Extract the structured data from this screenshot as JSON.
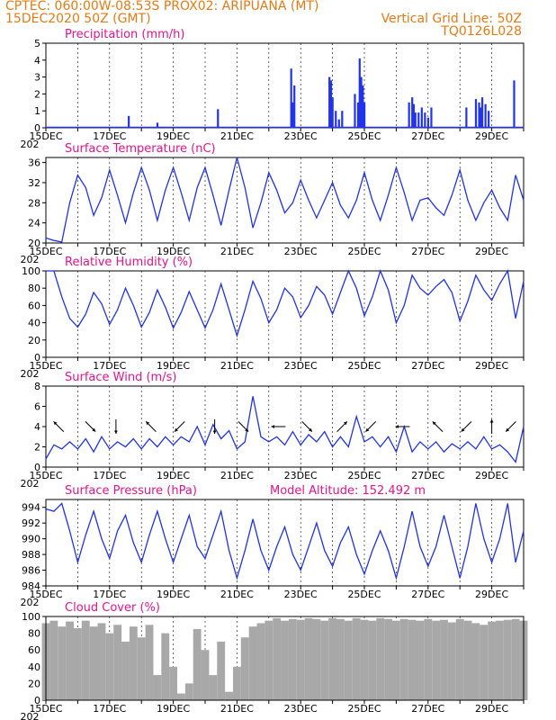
{
  "header": {
    "line1_left": "CPTEC:   060:00W-08:53S   PROX02: ARIPUANA (MT)",
    "line2_left": "15DEC2020 50Z (GMT)",
    "line2_right": "Vertical Grid Line: 50Z",
    "line3_right": "TQ0126L028"
  },
  "colors": {
    "line": "#2233dd",
    "bar": "#2233ee",
    "cloud": "#a8a8a8",
    "title": "#e0148c",
    "header": "#e07b17"
  },
  "x_axis": {
    "day_min": 15,
    "day_max": 30,
    "labels": [
      "15DEC",
      "17DEC",
      "19DEC",
      "21DEC",
      "23DEC",
      "25DEC",
      "27DEC",
      "29DEC"
    ],
    "label_days": [
      15,
      17,
      19,
      21,
      23,
      25,
      27,
      29
    ],
    "year_label": "202"
  },
  "chart_data": [
    {
      "id": "precip",
      "type": "bar",
      "title": "Precipitation (mm/h)",
      "ylim": [
        0,
        5
      ],
      "yticks": [
        0,
        1,
        2,
        3,
        4,
        5
      ],
      "x": [
        17.6,
        18.5,
        20.4,
        22.7,
        22.75,
        22.8,
        23.9,
        23.95,
        24.0,
        24.1,
        24.2,
        24.3,
        24.7,
        24.8,
        24.85,
        24.9,
        24.95,
        25.0,
        26.4,
        26.5,
        26.55,
        26.6,
        26.7,
        26.8,
        26.9,
        27.0,
        27.1,
        28.2,
        28.5,
        28.6,
        28.65,
        28.7,
        28.8,
        28.9,
        29.7
      ],
      "values": [
        0.7,
        0.3,
        1.1,
        3.5,
        1.5,
        2.5,
        3.0,
        2.8,
        1.8,
        1.0,
        0.5,
        1.0,
        2.0,
        1.5,
        4.1,
        3.0,
        2.5,
        1.5,
        1.5,
        1.8,
        1.4,
        0.9,
        0.9,
        1.2,
        0.9,
        0.6,
        1.2,
        1.2,
        1.7,
        1.5,
        1.2,
        1.8,
        1.4,
        1.0,
        2.8
      ]
    },
    {
      "id": "temp",
      "type": "line",
      "title": "Surface Temperature (nC)",
      "ylim": [
        20,
        37
      ],
      "yticks": [
        20,
        24,
        28,
        32,
        36
      ],
      "x": [
        15.0,
        15.25,
        15.5,
        15.75,
        16.0,
        16.25,
        16.5,
        16.75,
        17.0,
        17.25,
        17.5,
        17.75,
        18.0,
        18.25,
        18.5,
        18.75,
        19.0,
        19.25,
        19.5,
        19.75,
        20.0,
        20.25,
        20.5,
        20.75,
        21.0,
        21.25,
        21.5,
        21.75,
        22.0,
        22.25,
        22.5,
        22.75,
        23.0,
        23.25,
        23.5,
        23.75,
        24.0,
        24.25,
        24.5,
        24.75,
        25.0,
        25.25,
        25.5,
        25.75,
        26.0,
        26.25,
        26.5,
        26.75,
        27.0,
        27.25,
        27.5,
        27.75,
        28.0,
        28.25,
        28.5,
        28.75,
        29.0,
        29.25,
        29.5,
        29.75,
        30.0
      ],
      "values": [
        21.0,
        20.5,
        20.2,
        28.0,
        33.5,
        31.0,
        25.5,
        29.0,
        34.5,
        29.5,
        24.0,
        30.0,
        35.0,
        30.5,
        24.5,
        30.5,
        35.0,
        30.0,
        24.5,
        31.0,
        35.0,
        29.5,
        23.5,
        30.5,
        37.0,
        31.0,
        23.0,
        28.0,
        34.0,
        30.5,
        26.0,
        28.0,
        32.5,
        28.5,
        25.0,
        28.5,
        32.0,
        27.5,
        25.0,
        28.5,
        34.0,
        28.5,
        24.5,
        29.5,
        35.0,
        30.0,
        24.5,
        28.5,
        29.0,
        27.0,
        25.5,
        29.5,
        34.5,
        28.5,
        24.5,
        28.0,
        30.5,
        27.0,
        24.5,
        33.5,
        28.5
      ]
    },
    {
      "id": "rh",
      "type": "line",
      "title": "Relative Humidity (%)",
      "ylim": [
        0,
        100
      ],
      "yticks": [
        0,
        20,
        40,
        60,
        80,
        100
      ],
      "x": [
        15.0,
        15.25,
        15.5,
        15.75,
        16.0,
        16.25,
        16.5,
        16.75,
        17.0,
        17.25,
        17.5,
        17.75,
        18.0,
        18.25,
        18.5,
        18.75,
        19.0,
        19.25,
        19.5,
        19.75,
        20.0,
        20.25,
        20.5,
        20.75,
        21.0,
        21.25,
        21.5,
        21.75,
        22.0,
        22.25,
        22.5,
        22.75,
        23.0,
        23.25,
        23.5,
        23.75,
        24.0,
        24.25,
        24.5,
        24.75,
        25.0,
        25.25,
        25.5,
        25.75,
        26.0,
        26.25,
        26.5,
        26.75,
        27.0,
        27.25,
        27.5,
        27.75,
        28.0,
        28.25,
        28.5,
        28.75,
        29.0,
        29.25,
        29.5,
        29.75,
        30.0
      ],
      "values": [
        100.0,
        100.0,
        70.0,
        45.0,
        35.0,
        50.0,
        75.0,
        62.0,
        38.0,
        55.0,
        80.0,
        60.0,
        35.0,
        52.0,
        78.0,
        58.0,
        34.0,
        52.0,
        76.0,
        55.0,
        34.0,
        55.0,
        85.0,
        55.0,
        25.0,
        55.0,
        88.0,
        68.0,
        40.0,
        55.0,
        80.0,
        70.0,
        46.0,
        60.0,
        82.0,
        72.0,
        50.0,
        75.0,
        100.0,
        80.0,
        48.0,
        70.0,
        100.0,
        78.0,
        40.0,
        60.0,
        95.0,
        80.0,
        72.0,
        82.0,
        90.0,
        75.0,
        42.0,
        65.0,
        95.0,
        78.0,
        66.0,
        85.0,
        100.0,
        45.0,
        88.0
      ]
    },
    {
      "id": "wind",
      "type": "line",
      "title": "Surface Wind (m/s)",
      "ylim": [
        0,
        8
      ],
      "yticks": [
        0,
        2,
        4,
        6,
        8
      ],
      "x": [
        15.0,
        15.25,
        15.5,
        15.75,
        16.0,
        16.25,
        16.5,
        16.75,
        17.0,
        17.25,
        17.5,
        17.75,
        18.0,
        18.25,
        18.5,
        18.75,
        19.0,
        19.25,
        19.5,
        19.75,
        20.0,
        20.25,
        20.5,
        20.75,
        21.0,
        21.25,
        21.5,
        21.75,
        22.0,
        22.25,
        22.5,
        22.75,
        23.0,
        23.25,
        23.5,
        23.75,
        24.0,
        24.25,
        24.5,
        24.75,
        25.0,
        25.25,
        25.5,
        25.75,
        26.0,
        26.25,
        26.5,
        26.75,
        27.0,
        27.25,
        27.5,
        27.75,
        28.0,
        28.25,
        28.5,
        28.75,
        29.0,
        29.25,
        29.5,
        29.75,
        30.0
      ],
      "values": [
        0.8,
        2.2,
        1.8,
        2.5,
        1.8,
        2.8,
        1.5,
        3.0,
        1.8,
        2.5,
        2.0,
        2.8,
        1.8,
        2.8,
        2.0,
        3.0,
        2.2,
        3.0,
        2.5,
        4.0,
        2.2,
        4.2,
        2.8,
        3.6,
        1.8,
        2.5,
        7.0,
        3.0,
        2.5,
        3.0,
        2.2,
        3.5,
        2.2,
        3.2,
        2.5,
        3.5,
        2.0,
        3.0,
        2.0,
        5.0,
        2.5,
        3.0,
        2.0,
        3.0,
        1.5,
        4.0,
        1.5,
        2.5,
        1.8,
        2.5,
        1.5,
        2.3,
        1.8,
        2.5,
        1.8,
        3.0,
        1.8,
        2.2,
        1.5,
        0.5,
        4.0
      ]
    },
    {
      "id": "press",
      "type": "line",
      "title": "Surface Pressure (hPa)",
      "subtitle": "Model Altitude: 152.492 m",
      "ylim": [
        984,
        995
      ],
      "yticks": [
        984,
        986,
        988,
        990,
        992,
        994
      ],
      "x": [
        15.0,
        15.25,
        15.5,
        15.75,
        16.0,
        16.25,
        16.5,
        16.75,
        17.0,
        17.25,
        17.5,
        17.75,
        18.0,
        18.25,
        18.5,
        18.75,
        19.0,
        19.25,
        19.5,
        19.75,
        20.0,
        20.25,
        20.5,
        20.75,
        21.0,
        21.25,
        21.5,
        21.75,
        22.0,
        22.25,
        22.5,
        22.75,
        23.0,
        23.25,
        23.5,
        23.75,
        24.0,
        24.25,
        24.5,
        24.75,
        25.0,
        25.25,
        25.5,
        25.75,
        26.0,
        26.25,
        26.5,
        26.75,
        27.0,
        27.25,
        27.5,
        27.75,
        28.0,
        28.25,
        28.5,
        28.75,
        29.0,
        29.25,
        29.5,
        29.75,
        30.0
      ],
      "values": [
        993.8,
        993.5,
        994.5,
        991.0,
        987.0,
        990.5,
        993.5,
        990.0,
        987.5,
        991.0,
        993.0,
        989.5,
        987.0,
        990.5,
        993.5,
        990.0,
        987.0,
        990.0,
        993.0,
        989.0,
        987.5,
        990.5,
        993.5,
        988.5,
        985.0,
        988.5,
        992.5,
        988.5,
        986.0,
        989.0,
        991.5,
        988.0,
        986.0,
        989.0,
        992.0,
        988.5,
        986.5,
        989.5,
        991.5,
        988.0,
        985.5,
        988.5,
        991.0,
        988.5,
        985.0,
        989.0,
        993.5,
        989.0,
        986.5,
        989.0,
        993.0,
        989.0,
        985.0,
        989.0,
        994.5,
        990.0,
        987.0,
        990.0,
        994.5,
        987.0,
        991.0
      ]
    },
    {
      "id": "cloud",
      "type": "area",
      "title": "Cloud Cover (%)",
      "ylim": [
        0,
        100
      ],
      "yticks": [
        0,
        20,
        40,
        60,
        80,
        100
      ],
      "x": [
        15.0,
        15.25,
        15.5,
        15.75,
        16.0,
        16.25,
        16.5,
        16.75,
        17.0,
        17.25,
        17.5,
        17.75,
        18.0,
        18.25,
        18.5,
        18.75,
        19.0,
        19.25,
        19.5,
        19.75,
        20.0,
        20.25,
        20.5,
        20.75,
        21.0,
        21.25,
        21.5,
        21.75,
        22.0,
        22.25,
        22.5,
        22.75,
        23.0,
        23.25,
        23.5,
        23.75,
        24.0,
        24.25,
        24.5,
        24.75,
        25.0,
        25.25,
        25.5,
        25.75,
        26.0,
        26.25,
        26.5,
        26.75,
        27.0,
        27.25,
        27.5,
        27.75,
        28.0,
        28.25,
        28.5,
        28.75,
        29.0,
        29.25,
        29.5,
        29.75,
        30.0
      ],
      "values": [
        92.0,
        95.0,
        88.0,
        94.0,
        86.0,
        95.0,
        88.0,
        92.0,
        80.0,
        90.0,
        70.0,
        88.0,
        75.0,
        90.0,
        30.0,
        80.0,
        40.0,
        8.0,
        20.0,
        85.0,
        60.0,
        30.0,
        70.0,
        10.0,
        40.0,
        75.0,
        88.0,
        92.0,
        95.0,
        98.0,
        95.0,
        97.0,
        96.0,
        98.0,
        97.0,
        95.0,
        98.0,
        97.0,
        95.0,
        98.0,
        96.0,
        95.0,
        98.0,
        97.0,
        95.0,
        97.0,
        96.0,
        95.0,
        97.0,
        95.0,
        96.0,
        93.0,
        97.0,
        95.0,
        92.0,
        90.0,
        94.0,
        95.0,
        96.0,
        97.0,
        95.0
      ]
    }
  ],
  "wind_arrows": [
    {
      "day": 15.4,
      "dir": "upleft"
    },
    {
      "day": 16.4,
      "dir": "downright"
    },
    {
      "day": 17.2,
      "dir": "down"
    },
    {
      "day": 18.3,
      "dir": "upleft"
    },
    {
      "day": 19.2,
      "dir": "downleft"
    },
    {
      "day": 20.3,
      "dir": "down"
    },
    {
      "day": 21.2,
      "dir": "downright"
    },
    {
      "day": 22.3,
      "dir": "left"
    },
    {
      "day": 23.2,
      "dir": "downright"
    },
    {
      "day": 24.3,
      "dir": "upright"
    },
    {
      "day": 25.2,
      "dir": "downleft"
    },
    {
      "day": 26.2,
      "dir": "left"
    },
    {
      "day": 27.3,
      "dir": "upleft"
    },
    {
      "day": 28.2,
      "dir": "downleft"
    },
    {
      "day": 29.0,
      "dir": "up"
    },
    {
      "day": 29.6,
      "dir": "downleft"
    }
  ]
}
